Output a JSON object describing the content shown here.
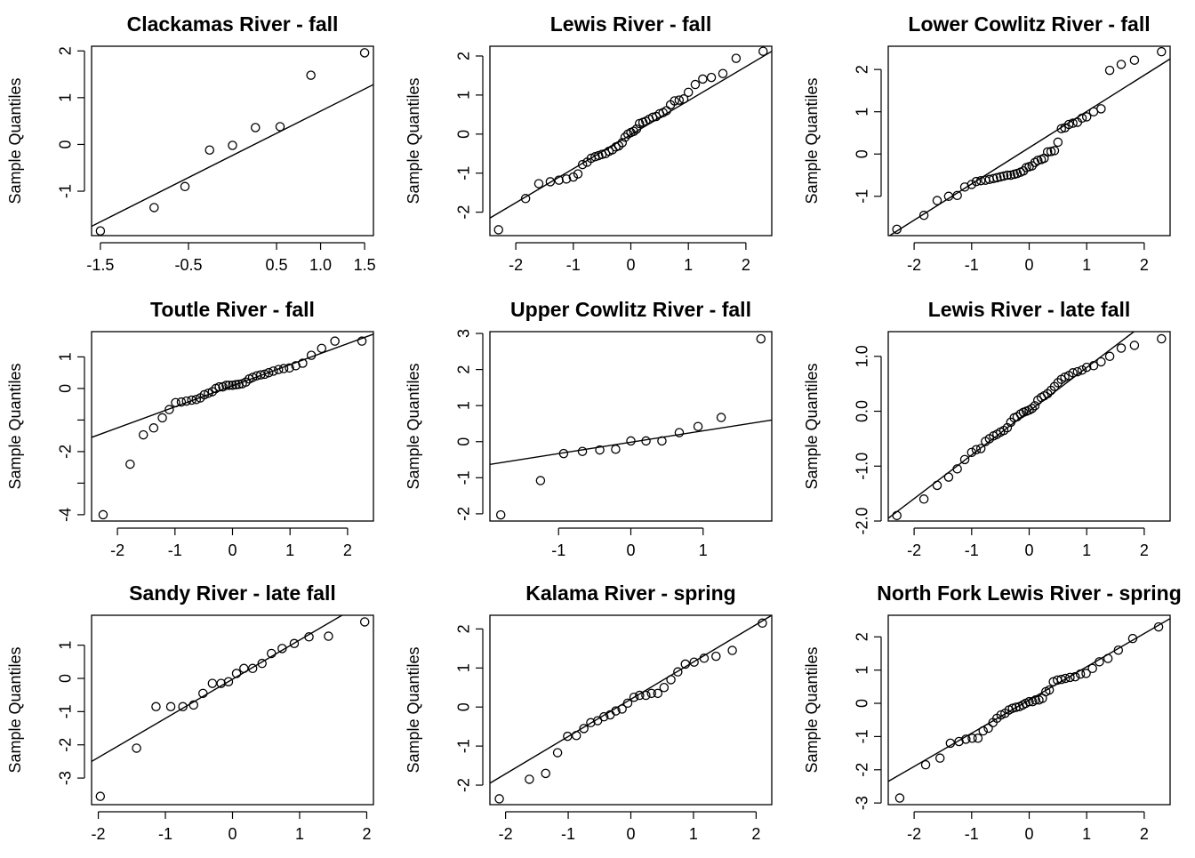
{
  "chart_data": [
    {
      "type": "scatter",
      "title": "Clackamas River - fall",
      "xlabel": "",
      "ylabel": "Sample Quantiles",
      "xlim": [
        -1.6,
        1.6
      ],
      "ylim": [
        -1.95,
        2.1
      ],
      "xticks": [
        -1.5,
        -0.5,
        0.5,
        1.0,
        1.5
      ],
      "xtick_labels": [
        "-1.5",
        "-0.5",
        "0.5",
        "1.0",
        "1.5"
      ],
      "yticks": [
        -1,
        0,
        1,
        2
      ],
      "ytick_labels": [
        "-1",
        "0",
        "1",
        "2"
      ],
      "x": [
        -1.5,
        -0.89,
        -0.54,
        -0.26,
        0.0,
        0.26,
        0.54,
        0.89,
        1.5
      ],
      "y": [
        -1.85,
        -1.35,
        -0.9,
        -0.12,
        -0.02,
        0.36,
        0.38,
        1.48,
        1.96
      ],
      "reference_line": [
        [
          -1.6,
          -1.75
        ],
        [
          1.6,
          1.28
        ]
      ],
      "grid": false
    },
    {
      "type": "scatter",
      "title": "Lewis River - fall",
      "xlabel": "",
      "ylabel": "Sample Quantiles",
      "xlim": [
        -2.45,
        2.45
      ],
      "ylim": [
        -2.6,
        2.25
      ],
      "xticks": [
        -2,
        -1,
        0,
        1,
        2
      ],
      "xtick_labels": [
        "-2",
        "-1",
        "0",
        "1",
        "2"
      ],
      "yticks": [
        -2,
        -1,
        0,
        1,
        2
      ],
      "ytick_labels": [
        "-2",
        "-1",
        "0",
        "1",
        "2"
      ],
      "x": [
        -2.3,
        -1.83,
        -1.6,
        -1.4,
        -1.25,
        -1.12,
        -1.0,
        -0.92,
        -0.84,
        -0.76,
        -0.69,
        -0.62,
        -0.56,
        -0.5,
        -0.44,
        -0.38,
        -0.32,
        -0.26,
        -0.21,
        -0.15,
        -0.1,
        -0.05,
        0.0,
        0.05,
        0.1,
        0.15,
        0.21,
        0.26,
        0.32,
        0.38,
        0.44,
        0.5,
        0.56,
        0.62,
        0.69,
        0.76,
        0.84,
        0.92,
        1.0,
        1.12,
        1.25,
        1.4,
        1.6,
        1.83,
        2.3
      ],
      "y": [
        -2.45,
        -1.65,
        -1.27,
        -1.22,
        -1.18,
        -1.15,
        -1.1,
        -1.02,
        -0.78,
        -0.72,
        -0.62,
        -0.58,
        -0.55,
        -0.52,
        -0.5,
        -0.44,
        -0.4,
        -0.33,
        -0.3,
        -0.22,
        -0.08,
        0.0,
        0.04,
        0.07,
        0.13,
        0.27,
        0.3,
        0.33,
        0.38,
        0.43,
        0.45,
        0.52,
        0.55,
        0.6,
        0.75,
        0.85,
        0.87,
        0.9,
        1.07,
        1.27,
        1.41,
        1.45,
        1.55,
        1.94,
        2.12
      ],
      "reference_line": [
        [
          -2.45,
          -2.15
        ],
        [
          2.45,
          2.12
        ]
      ],
      "grid": false
    },
    {
      "type": "scatter",
      "title": "Lower Cowlitz River - fall",
      "xlabel": "",
      "ylabel": "Sample Quantiles",
      "xlim": [
        -2.45,
        2.45
      ],
      "ylim": [
        -1.93,
        2.55
      ],
      "xticks": [
        -2,
        -1,
        0,
        1,
        2
      ],
      "xtick_labels": [
        "-2",
        "-1",
        "0",
        "1",
        "2"
      ],
      "yticks": [
        -1,
        0,
        1,
        2
      ],
      "ytick_labels": [
        "-1",
        "0",
        "1",
        "2"
      ],
      "x": [
        -2.3,
        -1.83,
        -1.6,
        -1.4,
        -1.25,
        -1.12,
        -1.0,
        -0.92,
        -0.84,
        -0.76,
        -0.69,
        -0.62,
        -0.56,
        -0.5,
        -0.44,
        -0.38,
        -0.32,
        -0.26,
        -0.21,
        -0.15,
        -0.1,
        -0.05,
        0.0,
        0.05,
        0.1,
        0.15,
        0.21,
        0.26,
        0.32,
        0.38,
        0.44,
        0.5,
        0.56,
        0.62,
        0.69,
        0.76,
        0.84,
        0.92,
        1.0,
        1.12,
        1.25,
        1.4,
        1.6,
        1.83,
        2.3
      ],
      "y": [
        -1.78,
        -1.45,
        -1.1,
        -1.0,
        -0.98,
        -0.78,
        -0.72,
        -0.65,
        -0.63,
        -0.62,
        -0.6,
        -0.58,
        -0.56,
        -0.54,
        -0.52,
        -0.5,
        -0.5,
        -0.48,
        -0.46,
        -0.43,
        -0.4,
        -0.32,
        -0.3,
        -0.28,
        -0.2,
        -0.15,
        -0.13,
        -0.1,
        0.05,
        0.06,
        0.08,
        0.28,
        0.6,
        0.62,
        0.7,
        0.73,
        0.75,
        0.85,
        0.88,
        1.0,
        1.07,
        1.98,
        2.12,
        2.22,
        2.42
      ],
      "reference_line": [
        [
          -2.45,
          -1.95
        ],
        [
          2.45,
          2.25
        ]
      ],
      "grid": false
    },
    {
      "type": "scatter",
      "title": "Toutle River - fall",
      "xlabel": "",
      "ylabel": "Sample Quantiles",
      "xlim": [
        -2.45,
        2.45
      ],
      "ylim": [
        -4.2,
        1.8
      ],
      "xticks": [
        -2,
        -1,
        0,
        1,
        2
      ],
      "xtick_labels": [
        "-2",
        "-1",
        "0",
        "1",
        "2"
      ],
      "yticks": [
        -4,
        -3,
        -2,
        -1,
        0,
        1
      ],
      "ytick_labels": [
        "-4",
        "",
        "-2",
        "",
        "0",
        "1"
      ],
      "x": [
        -2.25,
        -1.78,
        -1.55,
        -1.37,
        -1.22,
        -1.1,
        -0.99,
        -0.89,
        -0.8,
        -0.71,
        -0.63,
        -0.56,
        -0.49,
        -0.42,
        -0.35,
        -0.29,
        -0.23,
        -0.17,
        -0.11,
        -0.06,
        0.0,
        0.06,
        0.11,
        0.17,
        0.23,
        0.29,
        0.35,
        0.42,
        0.49,
        0.56,
        0.63,
        0.71,
        0.8,
        0.89,
        0.99,
        1.1,
        1.22,
        1.37,
        1.55,
        1.78,
        2.25
      ],
      "y": [
        -4.0,
        -2.4,
        -1.47,
        -1.25,
        -0.93,
        -0.67,
        -0.45,
        -0.43,
        -0.4,
        -0.37,
        -0.35,
        -0.3,
        -0.2,
        -0.15,
        -0.1,
        0.0,
        0.05,
        0.05,
        0.1,
        0.1,
        0.1,
        0.12,
        0.13,
        0.15,
        0.2,
        0.3,
        0.35,
        0.4,
        0.43,
        0.45,
        0.5,
        0.55,
        0.6,
        0.63,
        0.65,
        0.72,
        0.8,
        1.05,
        1.27,
        1.5,
        1.5
      ],
      "reference_line": [
        [
          -2.45,
          -1.55
        ],
        [
          2.45,
          1.72
        ]
      ],
      "grid": false
    },
    {
      "type": "scatter",
      "title": "Upper Cowlitz River - fall",
      "xlabel": "",
      "ylabel": "Sample Quantiles",
      "xlim": [
        -1.95,
        1.95
      ],
      "ylim": [
        -2.2,
        3.05
      ],
      "xticks": [
        -1,
        0,
        1
      ],
      "xtick_labels": [
        "-1",
        "0",
        "1"
      ],
      "yticks": [
        -2,
        -1,
        0,
        1,
        2,
        3
      ],
      "ytick_labels": [
        "-2",
        "-1",
        "0",
        "1",
        "2",
        "3"
      ],
      "x": [
        -1.8,
        -1.25,
        -0.93,
        -0.67,
        -0.43,
        -0.21,
        0.0,
        0.21,
        0.43,
        0.67,
        0.93,
        1.25,
        1.8
      ],
      "y": [
        -2.03,
        -1.08,
        -0.33,
        -0.27,
        -0.23,
        -0.21,
        0.02,
        0.02,
        0.02,
        0.25,
        0.42,
        0.67,
        2.85
      ],
      "reference_line": [
        [
          -1.95,
          -0.63
        ],
        [
          1.95,
          0.6
        ]
      ],
      "grid": false
    },
    {
      "type": "scatter",
      "title": "Lewis River - late fall",
      "xlabel": "",
      "ylabel": "Sample Quantiles",
      "xlim": [
        -2.45,
        2.45
      ],
      "ylim": [
        -2.0,
        1.45
      ],
      "xticks": [
        -2,
        -1,
        0,
        1,
        2
      ],
      "xtick_labels": [
        "-2",
        "-1",
        "0",
        "1",
        "2"
      ],
      "yticks": [
        -2.0,
        -1.0,
        0.0,
        1.0
      ],
      "ytick_labels": [
        "-2.0",
        "-1.0",
        "0.0",
        "1.0"
      ],
      "x": [
        -2.3,
        -1.83,
        -1.6,
        -1.4,
        -1.25,
        -1.12,
        -1.0,
        -0.92,
        -0.84,
        -0.76,
        -0.69,
        -0.62,
        -0.56,
        -0.5,
        -0.44,
        -0.38,
        -0.32,
        -0.26,
        -0.21,
        -0.15,
        -0.1,
        -0.05,
        0.0,
        0.05,
        0.1,
        0.15,
        0.21,
        0.26,
        0.32,
        0.38,
        0.44,
        0.5,
        0.56,
        0.62,
        0.69,
        0.76,
        0.84,
        0.92,
        1.0,
        1.12,
        1.25,
        1.4,
        1.6,
        1.83,
        2.3
      ],
      "y": [
        -1.9,
        -1.6,
        -1.35,
        -1.2,
        -1.05,
        -0.88,
        -0.75,
        -0.7,
        -0.68,
        -0.55,
        -0.5,
        -0.45,
        -0.42,
        -0.38,
        -0.35,
        -0.3,
        -0.2,
        -0.12,
        -0.1,
        -0.05,
        -0.02,
        0.0,
        0.02,
        0.05,
        0.1,
        0.2,
        0.25,
        0.28,
        0.32,
        0.38,
        0.45,
        0.52,
        0.58,
        0.62,
        0.65,
        0.7,
        0.72,
        0.75,
        0.8,
        0.83,
        0.9,
        1.0,
        1.15,
        1.2,
        1.32
      ],
      "reference_line": [
        [
          -2.45,
          -1.95
        ],
        [
          2.45,
          1.95
        ]
      ],
      "grid": false
    },
    {
      "type": "scatter",
      "title": "Sandy River - late fall",
      "xlabel": "",
      "ylabel": "Sample Quantiles",
      "xlim": [
        -2.1,
        2.1
      ],
      "ylim": [
        -3.8,
        1.9
      ],
      "xticks": [
        -2,
        -1,
        0,
        1,
        2
      ],
      "xtick_labels": [
        "-2",
        "-1",
        "0",
        "1",
        "2"
      ],
      "yticks": [
        -3,
        -2,
        -1,
        0,
        1
      ],
      "ytick_labels": [
        "-3",
        "-2",
        "-1",
        "0",
        "1"
      ],
      "x": [
        -1.97,
        -1.43,
        -1.14,
        -0.92,
        -0.74,
        -0.58,
        -0.44,
        -0.3,
        -0.17,
        -0.06,
        0.06,
        0.17,
        0.3,
        0.44,
        0.58,
        0.74,
        0.92,
        1.14,
        1.43,
        1.97
      ],
      "y": [
        -3.55,
        -2.1,
        -0.85,
        -0.85,
        -0.85,
        -0.8,
        -0.45,
        -0.15,
        -0.15,
        -0.1,
        0.15,
        0.3,
        0.3,
        0.45,
        0.75,
        0.9,
        1.05,
        1.25,
        1.27,
        1.7
      ],
      "reference_line": [
        [
          -2.1,
          -2.5
        ],
        [
          2.1,
          2.45
        ]
      ],
      "grid": false
    },
    {
      "type": "scatter",
      "title": "Kalama River - spring",
      "xlabel": "",
      "ylabel": "Sample Quantiles",
      "xlim": [
        -2.25,
        2.25
      ],
      "ylim": [
        -2.5,
        2.35
      ],
      "xticks": [
        -2,
        -1,
        0,
        1,
        2
      ],
      "xtick_labels": [
        "-2",
        "-1",
        "0",
        "1",
        "2"
      ],
      "yticks": [
        -2,
        -1,
        0,
        1,
        2
      ],
      "ytick_labels": [
        "-2",
        "-1",
        "0",
        "1",
        "2"
      ],
      "x": [
        -2.1,
        -1.62,
        -1.36,
        -1.17,
        -1.01,
        -0.87,
        -0.75,
        -0.64,
        -0.53,
        -0.43,
        -0.33,
        -0.24,
        -0.14,
        -0.05,
        0.05,
        0.14,
        0.24,
        0.33,
        0.43,
        0.53,
        0.64,
        0.75,
        0.87,
        1.01,
        1.17,
        1.36,
        1.62,
        2.1
      ],
      "y": [
        -2.35,
        -1.85,
        -1.7,
        -1.17,
        -0.75,
        -0.73,
        -0.55,
        -0.4,
        -0.35,
        -0.25,
        -0.2,
        -0.1,
        -0.05,
        0.1,
        0.25,
        0.3,
        0.3,
        0.35,
        0.35,
        0.5,
        0.7,
        0.9,
        1.1,
        1.15,
        1.25,
        1.3,
        1.45,
        2.15
      ],
      "reference_line": [
        [
          -2.25,
          -1.95
        ],
        [
          2.25,
          2.35
        ]
      ],
      "grid": false
    },
    {
      "type": "scatter",
      "title": "North Fork Lewis River - spring",
      "xlabel": "",
      "ylabel": "Sample Quantiles",
      "xlim": [
        -2.45,
        2.45
      ],
      "ylim": [
        -3.05,
        2.65
      ],
      "xticks": [
        -2,
        -1,
        0,
        1,
        2
      ],
      "xtick_labels": [
        "-2",
        "-1",
        "0",
        "1",
        "2"
      ],
      "yticks": [
        -3,
        -2,
        -1,
        0,
        1,
        2
      ],
      "ytick_labels": [
        "-3",
        "-2",
        "-1",
        "0",
        "1",
        "2"
      ],
      "x": [
        -2.25,
        -1.8,
        -1.55,
        -1.37,
        -1.22,
        -1.1,
        -0.99,
        -0.89,
        -0.8,
        -0.71,
        -0.63,
        -0.56,
        -0.49,
        -0.42,
        -0.35,
        -0.29,
        -0.23,
        -0.17,
        -0.11,
        -0.06,
        0.0,
        0.06,
        0.11,
        0.17,
        0.23,
        0.29,
        0.35,
        0.42,
        0.49,
        0.56,
        0.63,
        0.71,
        0.8,
        0.89,
        0.99,
        1.1,
        1.22,
        1.37,
        1.55,
        1.8,
        2.25
      ],
      "y": [
        -2.85,
        -1.85,
        -1.65,
        -1.2,
        -1.15,
        -1.08,
        -1.05,
        -1.05,
        -0.83,
        -0.75,
        -0.58,
        -0.45,
        -0.35,
        -0.3,
        -0.2,
        -0.15,
        -0.12,
        -0.1,
        -0.05,
        0.0,
        0.05,
        0.05,
        0.1,
        0.1,
        0.15,
        0.35,
        0.4,
        0.65,
        0.7,
        0.72,
        0.75,
        0.78,
        0.8,
        0.88,
        0.9,
        1.05,
        1.25,
        1.35,
        1.6,
        1.95,
        2.3
      ],
      "reference_line": [
        [
          -2.45,
          -2.35
        ],
        [
          2.45,
          2.55
        ]
      ],
      "grid": false
    }
  ]
}
